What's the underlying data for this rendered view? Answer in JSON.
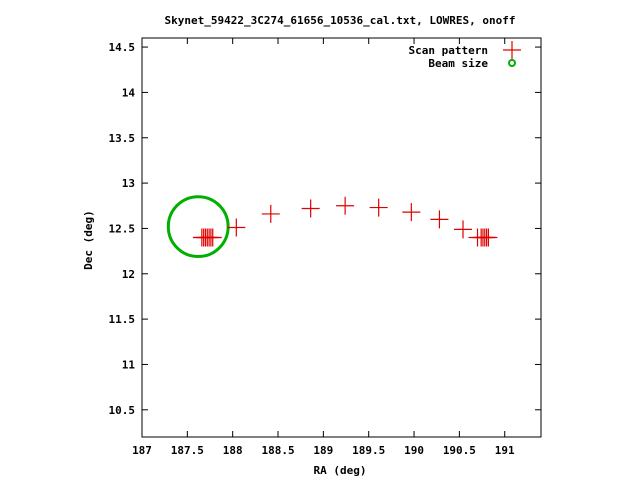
{
  "chart_data": {
    "type": "scatter",
    "title": "Skynet_59422_3C274_61656_10536_cal.txt, LOWRES, onoff",
    "xlabel": "RA (deg)",
    "ylabel": "Dec (deg)",
    "xlim": [
      187,
      191.4
    ],
    "ylim": [
      10.2,
      14.6
    ],
    "xticks": [
      187,
      187.5,
      188,
      188.5,
      189,
      189.5,
      190,
      190.5,
      191
    ],
    "yticks": [
      10.5,
      11,
      11.5,
      12,
      12.5,
      13,
      13.5,
      14,
      14.5
    ],
    "legend_position": "top-right",
    "series": [
      {
        "name": "Scan pattern",
        "marker": "plus",
        "color": "#e00000",
        "points": [
          {
            "x": 187.66,
            "y": 12.4
          },
          {
            "x": 187.68,
            "y": 12.4
          },
          {
            "x": 187.7,
            "y": 12.4
          },
          {
            "x": 187.72,
            "y": 12.4
          },
          {
            "x": 187.74,
            "y": 12.4
          },
          {
            "x": 187.76,
            "y": 12.4
          },
          {
            "x": 187.78,
            "y": 12.4
          },
          {
            "x": 188.04,
            "y": 12.51
          },
          {
            "x": 188.42,
            "y": 12.66
          },
          {
            "x": 188.86,
            "y": 12.72
          },
          {
            "x": 189.24,
            "y": 12.75
          },
          {
            "x": 189.61,
            "y": 12.73
          },
          {
            "x": 189.97,
            "y": 12.68
          },
          {
            "x": 190.28,
            "y": 12.6
          },
          {
            "x": 190.54,
            "y": 12.49
          },
          {
            "x": 190.7,
            "y": 12.4
          },
          {
            "x": 190.74,
            "y": 12.4
          },
          {
            "x": 190.76,
            "y": 12.4
          },
          {
            "x": 190.78,
            "y": 12.4
          },
          {
            "x": 190.8,
            "y": 12.4
          },
          {
            "x": 190.82,
            "y": 12.4
          }
        ]
      },
      {
        "name": "Beam size",
        "marker": "circle",
        "color": "#00b000",
        "center": {
          "x": 187.62,
          "y": 12.52
        },
        "radius_y": 0.33
      }
    ]
  }
}
